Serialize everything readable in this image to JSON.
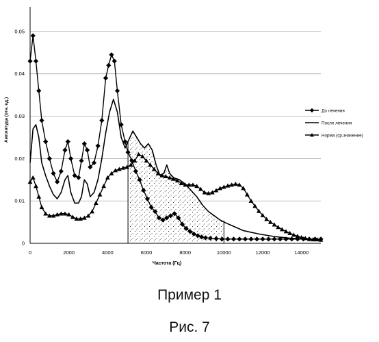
{
  "chart_data": {
    "type": "line",
    "xlabel": "Частота (Гц)",
    "ylabel": "Амплитуда (отн. ед.)",
    "xlim": [
      0,
      15000
    ],
    "ylim": [
      0,
      0.055
    ],
    "xticks": [
      0,
      2000,
      4000,
      6000,
      8000,
      10000,
      12000,
      14000
    ],
    "yticks": [
      0,
      0.01,
      0.02,
      0.03,
      0.04,
      0.05
    ],
    "xtick_labels": [
      "0",
      "2000",
      "4000",
      "6000",
      "8000",
      "10000",
      "12000",
      "14000"
    ],
    "ytick_labels": [
      "0",
      "0.01",
      "0.02",
      "0.03",
      "0.04",
      "0.05"
    ],
    "grid": "horizontal",
    "legend_position": "right",
    "shaded_region": {
      "x_start": 5050,
      "x_end": 10000,
      "pattern": "stipple"
    },
    "series": [
      {
        "name": "До лечения",
        "marker": "diamond",
        "points": [
          [
            0,
            0.043
          ],
          [
            150,
            0.049
          ],
          [
            300,
            0.043
          ],
          [
            450,
            0.036
          ],
          [
            600,
            0.029
          ],
          [
            800,
            0.024
          ],
          [
            1000,
            0.02
          ],
          [
            1200,
            0.0165
          ],
          [
            1400,
            0.0145
          ],
          [
            1600,
            0.017
          ],
          [
            1800,
            0.022
          ],
          [
            1950,
            0.024
          ],
          [
            2100,
            0.02
          ],
          [
            2300,
            0.016
          ],
          [
            2500,
            0.0155
          ],
          [
            2650,
            0.0195
          ],
          [
            2800,
            0.0235
          ],
          [
            2950,
            0.022
          ],
          [
            3100,
            0.018
          ],
          [
            3300,
            0.019
          ],
          [
            3500,
            0.023
          ],
          [
            3700,
            0.029
          ],
          [
            3900,
            0.039
          ],
          [
            4050,
            0.042
          ],
          [
            4200,
            0.0445
          ],
          [
            4350,
            0.043
          ],
          [
            4500,
            0.036
          ],
          [
            4700,
            0.028
          ],
          [
            4900,
            0.024
          ],
          [
            5050,
            0.0215
          ],
          [
            5250,
            0.0195
          ],
          [
            5450,
            0.017
          ],
          [
            5650,
            0.015
          ],
          [
            5850,
            0.0125
          ],
          [
            6050,
            0.0105
          ],
          [
            6250,
            0.0085
          ],
          [
            6450,
            0.0075
          ],
          [
            6650,
            0.006
          ],
          [
            6850,
            0.0055
          ],
          [
            7050,
            0.006
          ],
          [
            7250,
            0.0065
          ],
          [
            7450,
            0.007
          ],
          [
            7650,
            0.006
          ],
          [
            7850,
            0.0045
          ],
          [
            8050,
            0.0035
          ],
          [
            8250,
            0.0028
          ],
          [
            8450,
            0.0022
          ],
          [
            8650,
            0.0018
          ],
          [
            8850,
            0.0015
          ],
          [
            9050,
            0.0013
          ],
          [
            9300,
            0.0012
          ],
          [
            9600,
            0.0011
          ],
          [
            9900,
            0.001
          ],
          [
            10200,
            0.001
          ],
          [
            10500,
            0.001
          ],
          [
            10800,
            0.001
          ],
          [
            11100,
            0.001
          ],
          [
            11400,
            0.001
          ],
          [
            11700,
            0.001
          ],
          [
            12000,
            0.001
          ],
          [
            12300,
            0.001
          ],
          [
            12600,
            0.001
          ],
          [
            12900,
            0.001
          ],
          [
            13200,
            0.001
          ],
          [
            13500,
            0.001
          ],
          [
            13800,
            0.001
          ],
          [
            14100,
            0.001
          ],
          [
            14400,
            0.001
          ],
          [
            14700,
            0.001
          ],
          [
            15000,
            0.001
          ]
        ]
      },
      {
        "name": "После лечения",
        "marker": "none",
        "points": [
          [
            0,
            0.019
          ],
          [
            150,
            0.027
          ],
          [
            300,
            0.028
          ],
          [
            450,
            0.025
          ],
          [
            600,
            0.019
          ],
          [
            800,
            0.016
          ],
          [
            1000,
            0.0135
          ],
          [
            1200,
            0.0115
          ],
          [
            1400,
            0.0105
          ],
          [
            1600,
            0.012
          ],
          [
            1800,
            0.015
          ],
          [
            1950,
            0.016
          ],
          [
            2100,
            0.012
          ],
          [
            2300,
            0.0095
          ],
          [
            2500,
            0.0095
          ],
          [
            2650,
            0.011
          ],
          [
            2800,
            0.015
          ],
          [
            2950,
            0.014
          ],
          [
            3100,
            0.011
          ],
          [
            3300,
            0.012
          ],
          [
            3500,
            0.015
          ],
          [
            3700,
            0.02
          ],
          [
            3900,
            0.026
          ],
          [
            4100,
            0.031
          ],
          [
            4300,
            0.034
          ],
          [
            4500,
            0.031
          ],
          [
            4700,
            0.025
          ],
          [
            4900,
            0.0225
          ],
          [
            5100,
            0.0245
          ],
          [
            5300,
            0.0265
          ],
          [
            5500,
            0.025
          ],
          [
            5700,
            0.0235
          ],
          [
            5900,
            0.0225
          ],
          [
            6100,
            0.0235
          ],
          [
            6300,
            0.022
          ],
          [
            6500,
            0.0185
          ],
          [
            6700,
            0.016
          ],
          [
            6900,
            0.0165
          ],
          [
            7050,
            0.0185
          ],
          [
            7200,
            0.0165
          ],
          [
            7400,
            0.0155
          ],
          [
            7700,
            0.015
          ],
          [
            8000,
            0.014
          ],
          [
            8300,
            0.0125
          ],
          [
            8600,
            0.011
          ],
          [
            8900,
            0.009
          ],
          [
            9200,
            0.0075
          ],
          [
            9500,
            0.0065
          ],
          [
            9800,
            0.0055
          ],
          [
            10100,
            0.0048
          ],
          [
            10400,
            0.0042
          ],
          [
            10700,
            0.0036
          ],
          [
            11000,
            0.003
          ],
          [
            11400,
            0.0026
          ],
          [
            11800,
            0.0022
          ],
          [
            12200,
            0.0019
          ],
          [
            12600,
            0.0016
          ],
          [
            13000,
            0.0014
          ],
          [
            13400,
            0.0012
          ],
          [
            13800,
            0.0011
          ],
          [
            14200,
            0.001
          ],
          [
            14600,
            0.0009
          ],
          [
            15000,
            0.0008
          ]
        ]
      },
      {
        "name": "Норма (ср.значение)",
        "marker": "triangle",
        "points": [
          [
            0,
            0.0145
          ],
          [
            150,
            0.0155
          ],
          [
            300,
            0.0135
          ],
          [
            450,
            0.011
          ],
          [
            600,
            0.0085
          ],
          [
            800,
            0.007
          ],
          [
            1000,
            0.0065
          ],
          [
            1200,
            0.0065
          ],
          [
            1400,
            0.0068
          ],
          [
            1600,
            0.007
          ],
          [
            1800,
            0.007
          ],
          [
            2000,
            0.0068
          ],
          [
            2200,
            0.0062
          ],
          [
            2400,
            0.0058
          ],
          [
            2600,
            0.0058
          ],
          [
            2800,
            0.006
          ],
          [
            3000,
            0.0065
          ],
          [
            3200,
            0.0075
          ],
          [
            3400,
            0.0095
          ],
          [
            3600,
            0.0115
          ],
          [
            3800,
            0.0135
          ],
          [
            4000,
            0.0155
          ],
          [
            4200,
            0.0165
          ],
          [
            4400,
            0.0172
          ],
          [
            4600,
            0.0175
          ],
          [
            4800,
            0.0178
          ],
          [
            5000,
            0.018
          ],
          [
            5200,
            0.0185
          ],
          [
            5400,
            0.0195
          ],
          [
            5600,
            0.021
          ],
          [
            5800,
            0.0205
          ],
          [
            6000,
            0.0195
          ],
          [
            6200,
            0.0185
          ],
          [
            6400,
            0.0175
          ],
          [
            6600,
            0.0165
          ],
          [
            6800,
            0.016
          ],
          [
            7000,
            0.0158
          ],
          [
            7200,
            0.0155
          ],
          [
            7400,
            0.0152
          ],
          [
            7600,
            0.0148
          ],
          [
            7800,
            0.0142
          ],
          [
            8000,
            0.0138
          ],
          [
            8200,
            0.0138
          ],
          [
            8400,
            0.0138
          ],
          [
            8600,
            0.0135
          ],
          [
            8800,
            0.0128
          ],
          [
            9000,
            0.012
          ],
          [
            9200,
            0.0118
          ],
          [
            9400,
            0.012
          ],
          [
            9600,
            0.0125
          ],
          [
            9800,
            0.013
          ],
          [
            10000,
            0.0133
          ],
          [
            10200,
            0.0136
          ],
          [
            10400,
            0.0138
          ],
          [
            10600,
            0.014
          ],
          [
            10800,
            0.0138
          ],
          [
            11000,
            0.013
          ],
          [
            11200,
            0.0115
          ],
          [
            11400,
            0.01
          ],
          [
            11600,
            0.0088
          ],
          [
            11800,
            0.0076
          ],
          [
            12000,
            0.0066
          ],
          [
            12200,
            0.0057
          ],
          [
            12400,
            0.005
          ],
          [
            12600,
            0.0044
          ],
          [
            12800,
            0.0038
          ],
          [
            13000,
            0.0033
          ],
          [
            13200,
            0.0028
          ],
          [
            13400,
            0.0024
          ],
          [
            13600,
            0.002
          ],
          [
            13800,
            0.0017
          ],
          [
            14000,
            0.0014
          ],
          [
            14200,
            0.0012
          ],
          [
            14400,
            0.001
          ],
          [
            14600,
            0.0009
          ],
          [
            14800,
            0.0009
          ],
          [
            15000,
            0.0008
          ]
        ]
      }
    ]
  },
  "captions": {
    "example": "Пример 1",
    "figure": "Рис. 7"
  }
}
